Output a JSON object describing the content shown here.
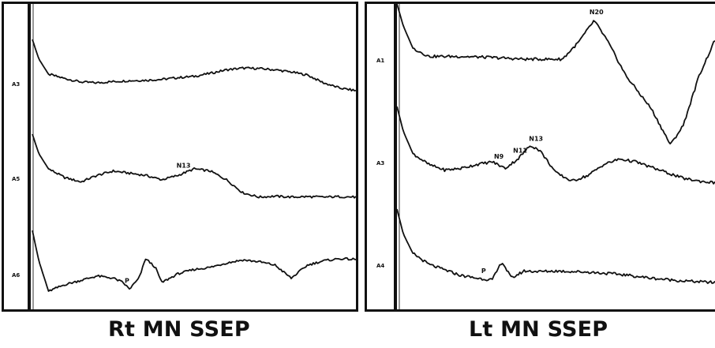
{
  "panels": [
    {
      "caption": "Rt MN SSEP",
      "channel_labels": [
        "A3",
        "A5",
        "A6"
      ]
    },
    {
      "caption": "Lt MN SSEP",
      "channel_labels": [
        "A1",
        "A3",
        "A4"
      ]
    }
  ],
  "chart_data": [
    {
      "type": "line",
      "title": "Rt MN SSEP",
      "xlabel": "",
      "ylabel": "",
      "series": [
        {
          "name": "A3",
          "x": [
            0,
            0.02,
            0.05,
            0.1,
            0.15,
            0.2,
            0.25,
            0.3,
            0.35,
            0.4,
            0.45,
            0.5,
            0.55,
            0.6,
            0.65,
            0.7,
            0.75,
            0.8,
            0.85,
            0.9,
            0.95,
            1.0
          ],
          "values": [
            1.0,
            0.55,
            0.2,
            0.1,
            0.02,
            0.0,
            0.03,
            0.05,
            0.06,
            0.08,
            0.12,
            0.15,
            0.22,
            0.3,
            0.34,
            0.33,
            0.3,
            0.25,
            0.18,
            0.0,
            -0.12,
            -0.18
          ]
        },
        {
          "name": "A5",
          "x": [
            0,
            0.02,
            0.05,
            0.1,
            0.15,
            0.2,
            0.25,
            0.3,
            0.35,
            0.4,
            0.45,
            0.5,
            0.55,
            0.6,
            0.65,
            0.7,
            0.75,
            0.8,
            0.85,
            0.9,
            0.95,
            1.0
          ],
          "values": [
            1.0,
            0.55,
            0.2,
            0.0,
            -0.1,
            0.05,
            0.15,
            0.1,
            0.05,
            -0.05,
            0.05,
            0.2,
            0.15,
            -0.05,
            -0.35,
            -0.45,
            -0.43,
            -0.45,
            -0.44,
            -0.45,
            -0.44,
            -0.45
          ]
        },
        {
          "name": "A6",
          "x": [
            0,
            0.02,
            0.05,
            0.1,
            0.15,
            0.2,
            0.25,
            0.28,
            0.3,
            0.33,
            0.35,
            0.38,
            0.4,
            0.45,
            0.5,
            0.55,
            0.6,
            0.65,
            0.7,
            0.75,
            0.8,
            0.85,
            0.9,
            0.95,
            1.0
          ],
          "values": [
            1.0,
            0.3,
            -0.4,
            -0.25,
            -0.15,
            -0.05,
            -0.1,
            -0.2,
            -0.35,
            -0.1,
            0.35,
            0.15,
            -0.2,
            0.0,
            0.1,
            0.15,
            0.25,
            0.32,
            0.28,
            0.2,
            -0.1,
            0.2,
            0.3,
            0.35,
            0.33
          ]
        }
      ],
      "annotations": [
        {
          "text": "N13",
          "series": "A5",
          "x": 0.46
        },
        {
          "text": "P",
          "series": "A6",
          "x": 0.3
        }
      ]
    },
    {
      "type": "line",
      "title": "Lt MN SSEP",
      "xlabel": "",
      "ylabel": "",
      "series": [
        {
          "name": "A1",
          "x": [
            0,
            0.02,
            0.05,
            0.1,
            0.2,
            0.3,
            0.4,
            0.5,
            0.52,
            0.57,
            0.62,
            0.66,
            0.72,
            0.8,
            0.86,
            0.9,
            0.95,
            1.0
          ],
          "values": [
            1.0,
            0.6,
            0.2,
            0.05,
            0.05,
            0.03,
            0.0,
            0.0,
            0.0,
            0.3,
            0.7,
            0.35,
            -0.3,
            -0.9,
            -1.55,
            -1.2,
            -0.3,
            0.35
          ]
        },
        {
          "name": "A3",
          "x": [
            0,
            0.02,
            0.05,
            0.1,
            0.15,
            0.2,
            0.25,
            0.3,
            0.34,
            0.38,
            0.42,
            0.45,
            0.5,
            0.55,
            0.6,
            0.65,
            0.7,
            0.75,
            0.8,
            0.85,
            0.9,
            0.95,
            1.0
          ],
          "values": [
            1.0,
            0.55,
            0.15,
            -0.05,
            -0.15,
            -0.12,
            -0.05,
            0.0,
            -0.12,
            0.05,
            0.3,
            0.2,
            -0.2,
            -0.35,
            -0.25,
            -0.05,
            0.05,
            0.0,
            -0.1,
            -0.2,
            -0.3,
            -0.35,
            -0.38
          ]
        },
        {
          "name": "A4",
          "x": [
            0,
            0.02,
            0.05,
            0.1,
            0.15,
            0.2,
            0.25,
            0.3,
            0.33,
            0.36,
            0.4,
            0.45,
            0.5,
            0.6,
            0.7,
            0.8,
            0.9,
            1.0
          ],
          "values": [
            1.0,
            0.55,
            0.2,
            0.0,
            -0.1,
            -0.2,
            -0.25,
            -0.28,
            0.05,
            -0.25,
            -0.12,
            -0.13,
            -0.12,
            -0.14,
            -0.18,
            -0.25,
            -0.3,
            -0.33
          ]
        }
      ],
      "annotations": [
        {
          "text": "N20",
          "series": "A1",
          "x": 0.62
        },
        {
          "text": "N13",
          "series": "A3",
          "x": 0.43
        },
        {
          "text": "N9",
          "series": "A3",
          "x": 0.32
        },
        {
          "text": "N11",
          "series": "A3",
          "x": 0.38
        },
        {
          "text": "P",
          "series": "A4",
          "x": 0.28
        }
      ]
    }
  ]
}
